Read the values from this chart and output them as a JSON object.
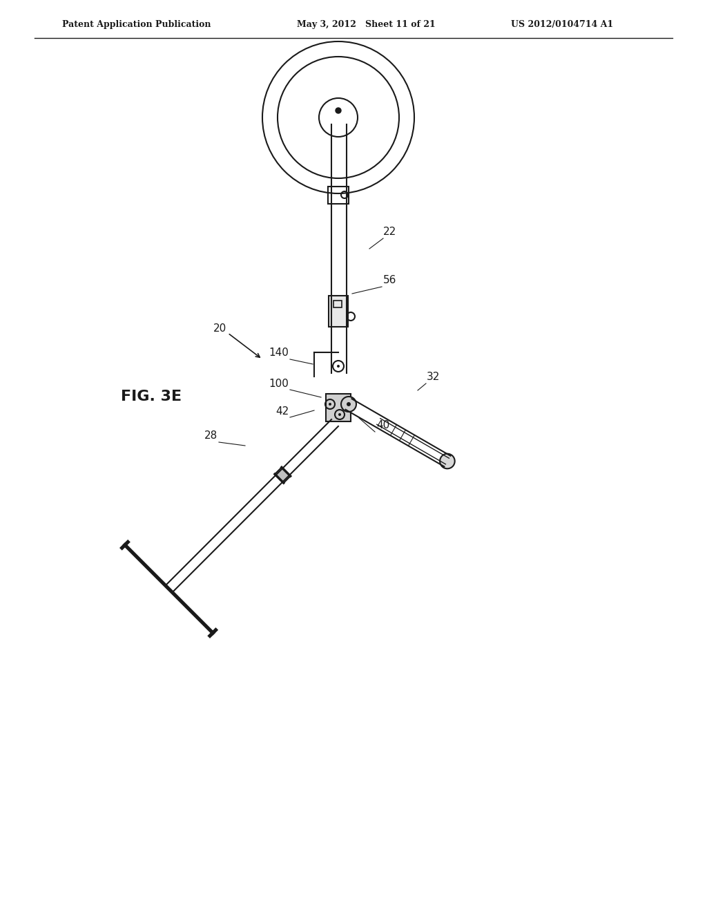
{
  "bg_color": "#ffffff",
  "line_color": "#1a1a1a",
  "header_left": "Patent Application Publication",
  "header_center": "May 3, 2012   Sheet 11 of 21",
  "header_right": "US 2012/0104714 A1",
  "fig_label": "FIG. 3E",
  "ref_20": "20",
  "ref_22": "22",
  "ref_28": "28",
  "ref_32": "32",
  "ref_40": "40",
  "ref_42": "42",
  "ref_56": "56",
  "ref_100": "100",
  "ref_140": "140"
}
